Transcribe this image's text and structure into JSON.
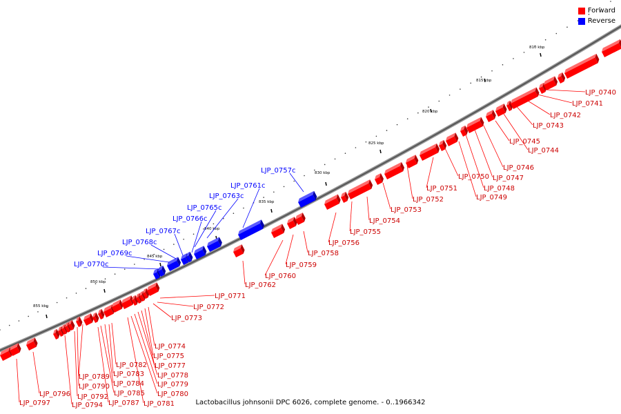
{
  "legend": {
    "forward_label": "Forward",
    "reverse_label": "Reverse",
    "forward_color": "#ff0000",
    "reverse_color": "#0000ff"
  },
  "caption": "Lactobacillus johnsonii DPC 6026, complete genome. - 0..1966342",
  "ticks": [
    "810 kbp",
    "815 kbp",
    "820 kbp",
    "825 kbp",
    "830 kbp",
    "835 kbp",
    "840 kbp",
    "845 kbp",
    "850 kbp",
    "855 kbp"
  ],
  "reverse_genes": [
    "LJP_0757c",
    "LJP_0761c",
    "LJP_0763c",
    "LJP_0765c",
    "LJP_0766c",
    "LJP_0767c",
    "LJP_0768c",
    "LJP_0769c",
    "LJP_0770c"
  ],
  "forward_genes": [
    "LJP_0740",
    "LJP_0741",
    "LJP_0742",
    "LJP_0743",
    "LJP_0744",
    "LJP_0745",
    "LJP_0746",
    "LJP_0747",
    "LJP_0748",
    "LJP_0749",
    "LJP_0750",
    "LJP_0751",
    "LJP_0752",
    "LJP_0753",
    "LJP_0754",
    "LJP_0755",
    "LJP_0756",
    "LJP_0758",
    "LJP_0759",
    "LJP_0760",
    "LJP_0762",
    "LJP_0771",
    "LJP_0772",
    "LJP_0773",
    "LJP_0774",
    "LJP_0775",
    "LJP_0777",
    "LJP_0778",
    "LJP_0779",
    "LJP_0780",
    "LJP_0781",
    "LJP_0782",
    "LJP_0783",
    "LJP_0784",
    "LJP_0785",
    "LJP_0787",
    "LJP_0789",
    "LJP_0790",
    "LJP_0792",
    "LJP_0794",
    "LJP_0796",
    "LJP_0797"
  ]
}
